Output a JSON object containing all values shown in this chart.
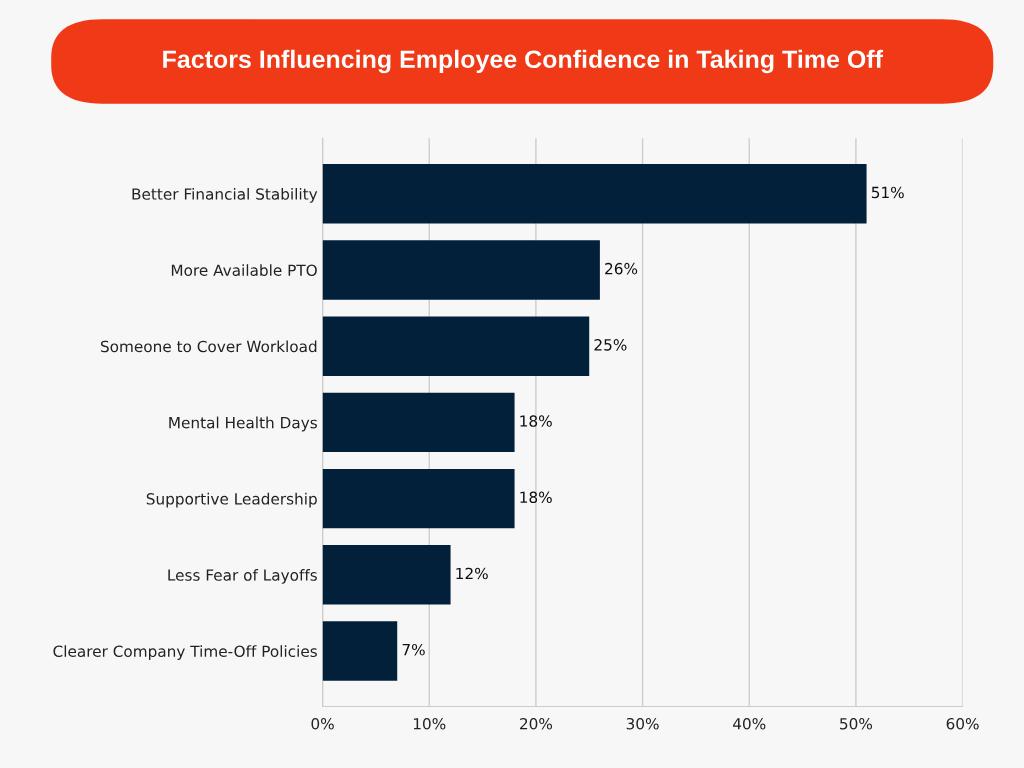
{
  "chart_data": {
    "type": "bar",
    "orientation": "horizontal",
    "title": "Factors Influencing Employee Confidence in Taking Time Off",
    "categories": [
      "Better Financial Stability",
      "More Available PTO",
      "Someone to Cover Workload",
      "Mental Health Days",
      "Supportive Leadership",
      "Less Fear of Layoffs",
      "Clearer Company Time-Off Policies"
    ],
    "values": [
      51,
      26,
      25,
      18,
      18,
      12,
      7
    ],
    "value_labels": [
      "51%",
      "26%",
      "25%",
      "18%",
      "18%",
      "12%",
      "7%"
    ],
    "color": "#02203a",
    "xlim": [
      0,
      60
    ],
    "xticks": [
      {
        "value": 0,
        "label": "0%"
      },
      {
        "value": 10,
        "label": "10%"
      },
      {
        "value": 20,
        "label": "20%"
      },
      {
        "value": 30,
        "label": "30%"
      },
      {
        "value": 40,
        "label": "40%"
      },
      {
        "value": 50,
        "label": "50%"
      },
      {
        "value": 60,
        "label": "60%"
      }
    ],
    "grid": "x"
  }
}
